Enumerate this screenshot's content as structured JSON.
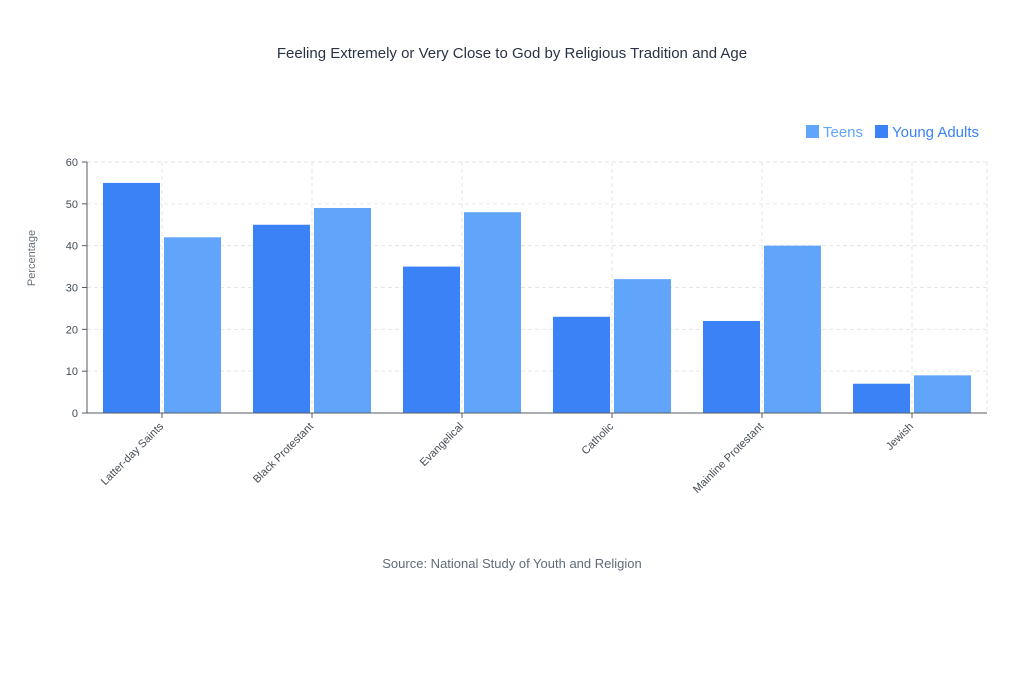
{
  "chart_data": {
    "type": "bar",
    "title": "Feeling Extremely or Very Close to God by Religious Tradition and Age",
    "source": "Source: National Study of Youth and Religion",
    "xlabel": "",
    "ylabel": "Percentage",
    "ylim": [
      0,
      60
    ],
    "yticks": [
      0,
      10,
      20,
      30,
      40,
      50,
      60
    ],
    "grid": true,
    "legend_position": "top-right",
    "categories": [
      "Latter-day Saints",
      "Black Protestant",
      "Evangelical",
      "Catholic",
      "Mainline Protestant",
      "Jewish"
    ],
    "series": [
      {
        "name": "Young Adults",
        "color": "#3b82f6",
        "values": [
          55,
          45,
          35,
          23,
          22,
          7
        ]
      },
      {
        "name": "Teens",
        "color": "#60a5fa",
        "values": [
          42,
          49,
          48,
          32,
          40,
          9
        ]
      }
    ],
    "legend_order": [
      "Teens",
      "Young Adults"
    ]
  }
}
